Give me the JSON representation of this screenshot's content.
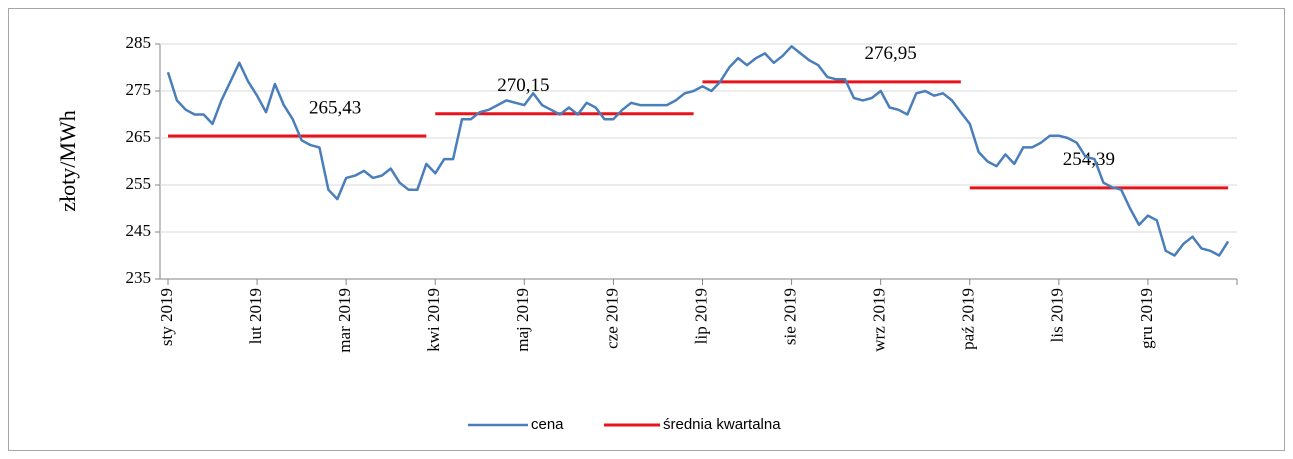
{
  "chart_data": {
    "type": "line",
    "y_label": "złoty/MWh",
    "categories": [
      "sty 2019",
      null,
      null,
      null,
      null,
      null,
      null,
      null,
      null,
      null,
      "lut 2019",
      null,
      null,
      null,
      null,
      null,
      null,
      null,
      null,
      null,
      "mar 2019",
      null,
      null,
      null,
      null,
      null,
      null,
      null,
      null,
      null,
      "kwi 2019",
      null,
      null,
      null,
      null,
      null,
      null,
      null,
      null,
      null,
      "maj 2019",
      null,
      null,
      null,
      null,
      null,
      null,
      null,
      null,
      null,
      "cze 2019",
      null,
      null,
      null,
      null,
      null,
      null,
      null,
      null,
      null,
      "lip 2019",
      null,
      null,
      null,
      null,
      null,
      null,
      null,
      null,
      null,
      "sie 2019",
      null,
      null,
      null,
      null,
      null,
      null,
      null,
      null,
      null,
      "wrz 2019",
      null,
      null,
      null,
      null,
      null,
      null,
      null,
      null,
      null,
      "paź 2019",
      null,
      null,
      null,
      null,
      null,
      null,
      null,
      null,
      null,
      "lis 2019",
      null,
      null,
      null,
      null,
      null,
      null,
      null,
      null,
      null,
      "gru 2019",
      null,
      null,
      null,
      null,
      null,
      null,
      null,
      null,
      null
    ],
    "series": [
      {
        "name": "cena",
        "color": "#4a7ebb",
        "values": [
          279,
          273,
          271,
          270,
          270,
          268,
          273,
          277,
          281,
          277,
          274,
          270.5,
          276.5,
          272,
          269,
          264.5,
          263.5,
          263,
          254,
          252,
          256.5,
          257,
          258,
          256.5,
          257,
          258.5,
          255.5,
          254,
          254,
          259.5,
          257.5,
          260.5,
          260.5,
          269,
          269,
          270.5,
          271,
          272,
          273,
          272.5,
          272,
          274.5,
          272,
          271,
          270,
          271.5,
          270,
          272.5,
          271.5,
          269,
          269,
          271,
          272.5,
          272,
          272,
          272,
          272,
          273,
          274.5,
          275,
          276,
          275,
          277,
          280,
          282,
          280.5,
          282,
          283,
          281,
          282.5,
          284.5,
          283,
          281.5,
          280.5,
          278,
          277.5,
          277.5,
          273.5,
          273,
          273.5,
          275,
          271.5,
          271,
          270,
          274.5,
          275,
          274,
          274.5,
          273,
          270.5,
          268,
          262,
          260,
          259,
          261.5,
          259.5,
          263,
          263,
          264,
          265.5,
          265.5,
          265,
          264,
          261,
          260.5,
          255.5,
          254.5,
          254,
          250,
          246.5,
          248.5,
          247.5,
          241,
          240,
          242.5,
          244,
          241.5,
          241,
          240,
          243
        ]
      }
    ],
    "quarter_averages": {
      "name": "średnia kwartalna",
      "color": "#e8141b",
      "values": [
        265.43,
        270.15,
        276.95,
        254.39
      ],
      "value_labels": [
        "265,43",
        "270,15",
        "276,95",
        "254,39"
      ]
    },
    "ylim": [
      235,
      285
    ],
    "yticks": [
      235,
      245,
      255,
      265,
      275,
      285
    ],
    "grid": true,
    "legend": "bottom"
  }
}
